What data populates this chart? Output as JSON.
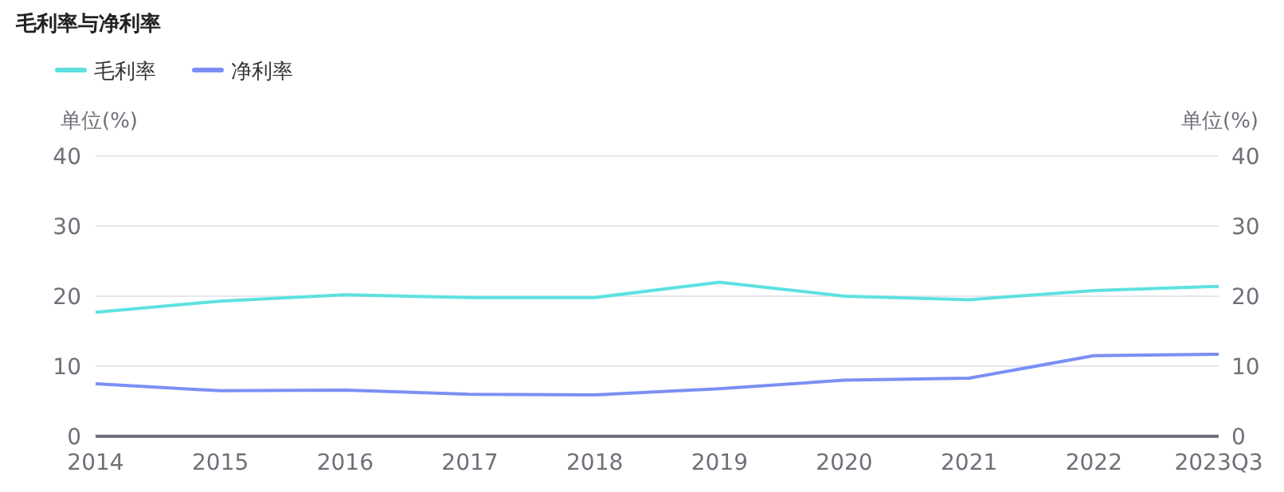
{
  "chart_data": {
    "type": "line",
    "title": "毛利率与净利率",
    "ylabel": "单位(%)",
    "y2label": "单位(%)",
    "categories": [
      "2014",
      "2015",
      "2016",
      "2017",
      "2018",
      "2019",
      "2020",
      "2021",
      "2022",
      "2023Q3"
    ],
    "series": [
      {
        "name": "毛利率",
        "color": "#5ce1e0",
        "values": [
          17.7,
          19.3,
          20.2,
          19.8,
          19.8,
          22.0,
          20.0,
          19.5,
          20.8,
          21.4
        ]
      },
      {
        "name": "净利率",
        "color": "#7b8ff5",
        "values": [
          7.5,
          6.5,
          6.6,
          6.0,
          5.9,
          6.8,
          8.0,
          8.3,
          11.5,
          11.7
        ]
      }
    ],
    "ylim": [
      0,
      40
    ],
    "yticks": [
      0,
      10,
      20,
      30,
      40
    ],
    "y2lim": [
      0,
      40
    ],
    "y2ticks": [
      0,
      10,
      20,
      30,
      40
    ],
    "grid": "y",
    "legend": "top left",
    "marker": "none",
    "line_style": "solid"
  }
}
